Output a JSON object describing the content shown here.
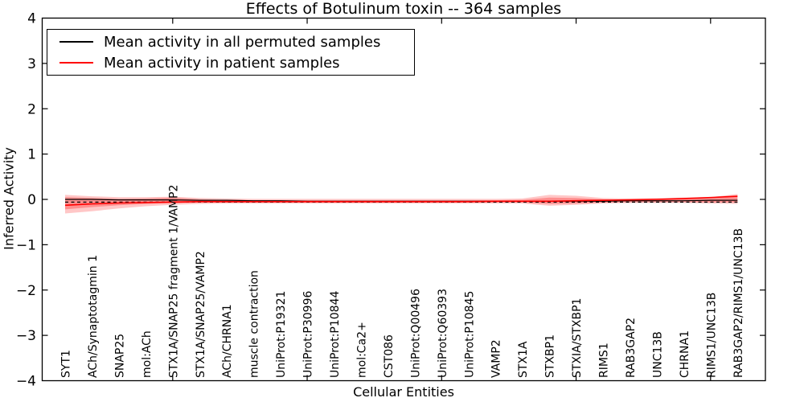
{
  "chart_data": {
    "type": "line",
    "title": "Effects of Botulinum toxin -- 364 samples",
    "xlabel": "Cellular Entities",
    "ylabel": "Inferred Activity",
    "ylim": [
      -4,
      4
    ],
    "grid": false,
    "legend_position": "upper-left",
    "legend": [
      {
        "label": "Mean activity in all permuted samples",
        "color": "#000000"
      },
      {
        "label": "Mean activity in patient samples",
        "color": "#ff0000"
      }
    ],
    "yticks": [
      {
        "value": 4,
        "label": "4"
      },
      {
        "value": 3,
        "label": "3"
      },
      {
        "value": 2,
        "label": "2"
      },
      {
        "value": 1,
        "label": "1"
      },
      {
        "value": 0,
        "label": "0"
      },
      {
        "value": -1,
        "label": "−1"
      },
      {
        "value": -2,
        "label": "−2"
      },
      {
        "value": -3,
        "label": "−3"
      },
      {
        "value": -4,
        "label": "−4"
      }
    ],
    "xticks_major": [
      5,
      10,
      15,
      20,
      25
    ],
    "categories": [
      "SYT1",
      "ACh/Synaptotagmin 1",
      "SNAP25",
      "mol:ACh",
      "STX1A/SNAP25 fragment 1/VAMP2",
      "STX1A/SNAP25/VAMP2",
      "ACh/CHRNA1",
      "muscle contraction",
      "UniProt:P19321",
      "UniProt:P30996",
      "UniProt:P10844",
      "mol:Ca2+",
      "CST086",
      "UniProt:Q00496",
      "UniProt:Q60393",
      "UniProt:P10845",
      "VAMP2",
      "STX1A",
      "STXBP1",
      "STXIA/STXBP1",
      "RIMS1",
      "RAB3GAP2",
      "UNC13B",
      "CHRNA1",
      "RIMS1/UNC13B",
      "RAB3GAP2/RIMS1/UNC13B"
    ],
    "series": [
      {
        "name": "Mean activity in all permuted samples",
        "color": "#000000",
        "style": "solid",
        "width": 1.2,
        "values": [
          0.0,
          0.0,
          -0.01,
          -0.01,
          -0.01,
          -0.02,
          -0.02,
          -0.03,
          -0.03,
          -0.04,
          -0.04,
          -0.04,
          -0.04,
          -0.04,
          -0.04,
          -0.04,
          -0.04,
          -0.04,
          -0.04,
          -0.04,
          -0.04,
          -0.03,
          -0.03,
          -0.03,
          -0.02,
          -0.02
        ]
      },
      {
        "name": "zero reference (dashed)",
        "color": "#000000",
        "style": "dashed",
        "width": 1.2,
        "values": [
          -0.06,
          -0.06,
          -0.06,
          -0.06,
          -0.06,
          -0.06,
          -0.06,
          -0.06,
          -0.06,
          -0.06,
          -0.06,
          -0.06,
          -0.06,
          -0.06,
          -0.06,
          -0.06,
          -0.06,
          -0.06,
          -0.06,
          -0.06,
          -0.06,
          -0.06,
          -0.06,
          -0.06,
          -0.06,
          -0.06
        ]
      },
      {
        "name": "Mean activity in patient samples",
        "color": "#ff0000",
        "style": "solid",
        "width": 1.6,
        "values": [
          -0.13,
          -0.1,
          -0.08,
          -0.07,
          -0.06,
          -0.05,
          -0.05,
          -0.05,
          -0.05,
          -0.05,
          -0.05,
          -0.05,
          -0.05,
          -0.05,
          -0.05,
          -0.05,
          -0.04,
          -0.04,
          -0.04,
          -0.03,
          -0.02,
          -0.01,
          0.0,
          0.02,
          0.04,
          0.07
        ]
      }
    ],
    "bands": [
      {
        "name": "patient spread (outer)",
        "color": "#ff0000",
        "opacity": 0.22,
        "upper": [
          0.1,
          0.07,
          0.05,
          0.05,
          0.06,
          0.03,
          0.02,
          0.01,
          0.01,
          0.01,
          0.01,
          0.01,
          0.01,
          0.01,
          0.01,
          0.01,
          0.01,
          0.02,
          0.1,
          0.08,
          0.03,
          0.02,
          0.03,
          0.04,
          0.05,
          0.12
        ],
        "lower": [
          -0.31,
          -0.26,
          -0.2,
          -0.15,
          -0.12,
          -0.1,
          -0.09,
          -0.09,
          -0.09,
          -0.09,
          -0.09,
          -0.09,
          -0.09,
          -0.09,
          -0.09,
          -0.09,
          -0.09,
          -0.09,
          -0.14,
          -0.12,
          -0.09,
          -0.08,
          -0.08,
          -0.08,
          -0.09,
          -0.1
        ]
      },
      {
        "name": "patient spread (inner)",
        "color": "#ff0000",
        "opacity": 0.28,
        "upper": [
          0.05,
          0.03,
          0.01,
          0.02,
          0.04,
          0.0,
          -0.01,
          -0.02,
          -0.02,
          -0.02,
          -0.02,
          -0.02,
          -0.02,
          -0.02,
          -0.02,
          -0.02,
          -0.02,
          -0.01,
          0.04,
          0.03,
          0.0,
          -0.01,
          0.0,
          0.01,
          0.02,
          0.06
        ],
        "lower": [
          -0.22,
          -0.17,
          -0.13,
          -0.1,
          -0.08,
          -0.07,
          -0.07,
          -0.07,
          -0.07,
          -0.07,
          -0.07,
          -0.07,
          -0.07,
          -0.07,
          -0.07,
          -0.07,
          -0.07,
          -0.07,
          -0.1,
          -0.09,
          -0.07,
          -0.06,
          -0.06,
          -0.06,
          -0.07,
          -0.07
        ]
      }
    ]
  }
}
